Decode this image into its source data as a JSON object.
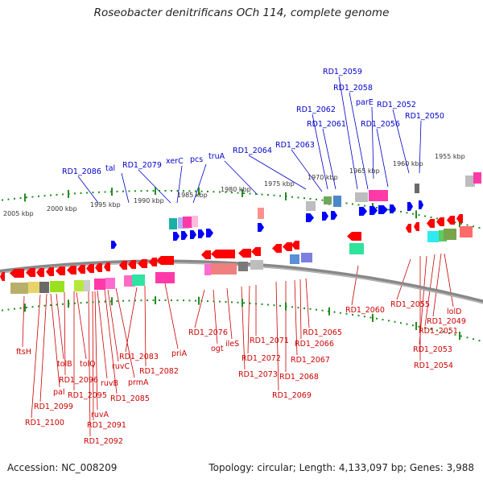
{
  "title": "Roseobacter denitrificans OCh 114, complete genome",
  "footer": {
    "accession": "Accession: NC_008209",
    "summary": "Topology: circular; Length: 4,133,097 bp; Genes: 3,988"
  },
  "colors": {
    "top_labels": "#0000cc",
    "bottom_labels": "#cc0000",
    "forward_strand": "#0000ff",
    "reverse_strand": "#ff0000",
    "backbone": "#888888",
    "ticks": "#228b22"
  },
  "scale": {
    "inner_ticks": [
      "2005 kbp",
      "2000 kbp",
      "1995 kbp",
      "1990 kbp",
      "1985 kbp",
      "1980 kbp",
      "1975 kbp",
      "1970 kbp",
      "1965 kbp",
      "1960 kbp",
      "1955 kbp"
    ]
  },
  "top_labels": [
    "RD1_2086",
    "tal",
    "RD1_2079",
    "xerC",
    "pcs",
    "truA",
    "RD1_2064",
    "RD1_2063",
    "RD1_2062",
    "RD1_2061",
    "RD1_2059",
    "RD1_2058",
    "parE",
    "RD1_2056",
    "RD1_2052",
    "RD1_2050"
  ],
  "bottom_labels": [
    "ftsH",
    "RD1_2100",
    "RD1_2099",
    "pal",
    "tolB",
    "RD1_2096",
    "tolQ",
    "RD1_2095",
    "RD1_2092",
    "RD1_2091",
    "ruvA",
    "ruvB",
    "RD1_2085",
    "prmA",
    "ruvC",
    "RD1_2083",
    "RD1_2082",
    "priA",
    "RD1_2076",
    "ogt",
    "ileS",
    "RD1_2073",
    "RD1_2072",
    "RD1_2071",
    "RD1_2069",
    "RD1_2068",
    "RD1_2067",
    "RD1_2066",
    "RD1_2065",
    "RD1_2060",
    "RD1_2055",
    "RD1_2054",
    "RD1_2053",
    "RD1_2051",
    "RD1_2049",
    "lolD"
  ]
}
